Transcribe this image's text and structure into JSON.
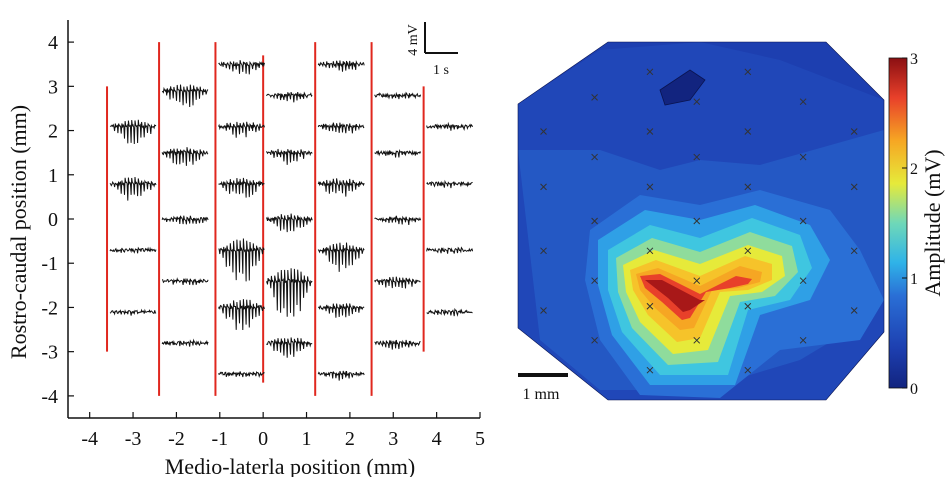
{
  "chart_data": [
    {
      "type": "line",
      "xlabel": "Medio-laterla position (mm)",
      "ylabel": "Rostro-caudal position (mm)",
      "xlim": [
        -4.5,
        5
      ],
      "ylim": [
        -4.5,
        4.5
      ],
      "xticks": [
        -4,
        -3,
        -2,
        -1,
        0,
        1,
        2,
        3,
        4,
        5
      ],
      "yticks": [
        4,
        3,
        2,
        1,
        0,
        -1,
        -2,
        -3,
        -4
      ],
      "scalebar": {
        "vertical_label": "4 mV",
        "horizontal_label": "1 s"
      },
      "trace_color": "#111111",
      "shank_color": "#e0271e",
      "shanks": [
        {
          "x": -3.6,
          "y_range": [
            -3.0,
            3.0
          ]
        },
        {
          "x": -2.4,
          "y_range": [
            -4.0,
            4.0
          ]
        },
        {
          "x": -1.1,
          "y_range": [
            -4.0,
            4.0
          ]
        },
        {
          "x": 0.0,
          "y_range": [
            -3.7,
            3.7
          ]
        },
        {
          "x": 1.2,
          "y_range": [
            -4.0,
            4.0
          ]
        },
        {
          "x": 2.5,
          "y_range": [
            -4.0,
            4.0
          ]
        },
        {
          "x": 3.7,
          "y_range": [
            -3.0,
            3.0
          ]
        }
      ],
      "series": [
        {
          "x": -3.6,
          "sites_y": [
            2.1,
            0.8,
            -0.7,
            -2.1
          ],
          "amplitudes": [
            1.4,
            1.3,
            0.2,
            0.2
          ]
        },
        {
          "x": -2.4,
          "sites_y": [
            2.9,
            1.5,
            0.0,
            -1.4,
            -2.8
          ],
          "amplitudes": [
            1.3,
            1.1,
            0.5,
            0.3,
            0.3
          ]
        },
        {
          "x": -1.1,
          "sites_y": [
            3.5,
            2.1,
            0.8,
            -0.7,
            -2.0,
            -3.5
          ],
          "amplitudes": [
            0.8,
            0.8,
            1.2,
            2.6,
            1.8,
            0.3
          ]
        },
        {
          "x": 0.0,
          "sites_y": [
            2.8,
            1.5,
            0.0,
            -1.4,
            -2.8
          ],
          "amplitudes": [
            0.5,
            0.8,
            1.0,
            3.0,
            1.2
          ]
        },
        {
          "x": 1.2,
          "sites_y": [
            3.5,
            2.1,
            0.8,
            -0.7,
            -2.0,
            -3.5
          ],
          "amplitudes": [
            0.6,
            0.6,
            1.0,
            1.6,
            0.8,
            0.4
          ]
        },
        {
          "x": 2.5,
          "sites_y": [
            2.8,
            1.5,
            0.0,
            -1.4,
            -2.8
          ],
          "amplitudes": [
            0.3,
            0.3,
            0.5,
            0.7,
            0.5
          ]
        },
        {
          "x": 3.7,
          "sites_y": [
            2.1,
            0.8,
            -0.7,
            -2.1
          ],
          "amplitudes": [
            0.3,
            0.3,
            0.3,
            0.3
          ]
        }
      ]
    },
    {
      "type": "heatmap",
      "colorbar": {
        "label": "Amplitude (mV)",
        "range": [
          0,
          3
        ],
        "ticks": [
          0,
          1,
          2,
          3
        ]
      },
      "scalebar_label": "1 mm",
      "peak_amplitude": 3.0,
      "description_of_hotspot": "V-shaped region of high amplitude in the lower center"
    }
  ]
}
